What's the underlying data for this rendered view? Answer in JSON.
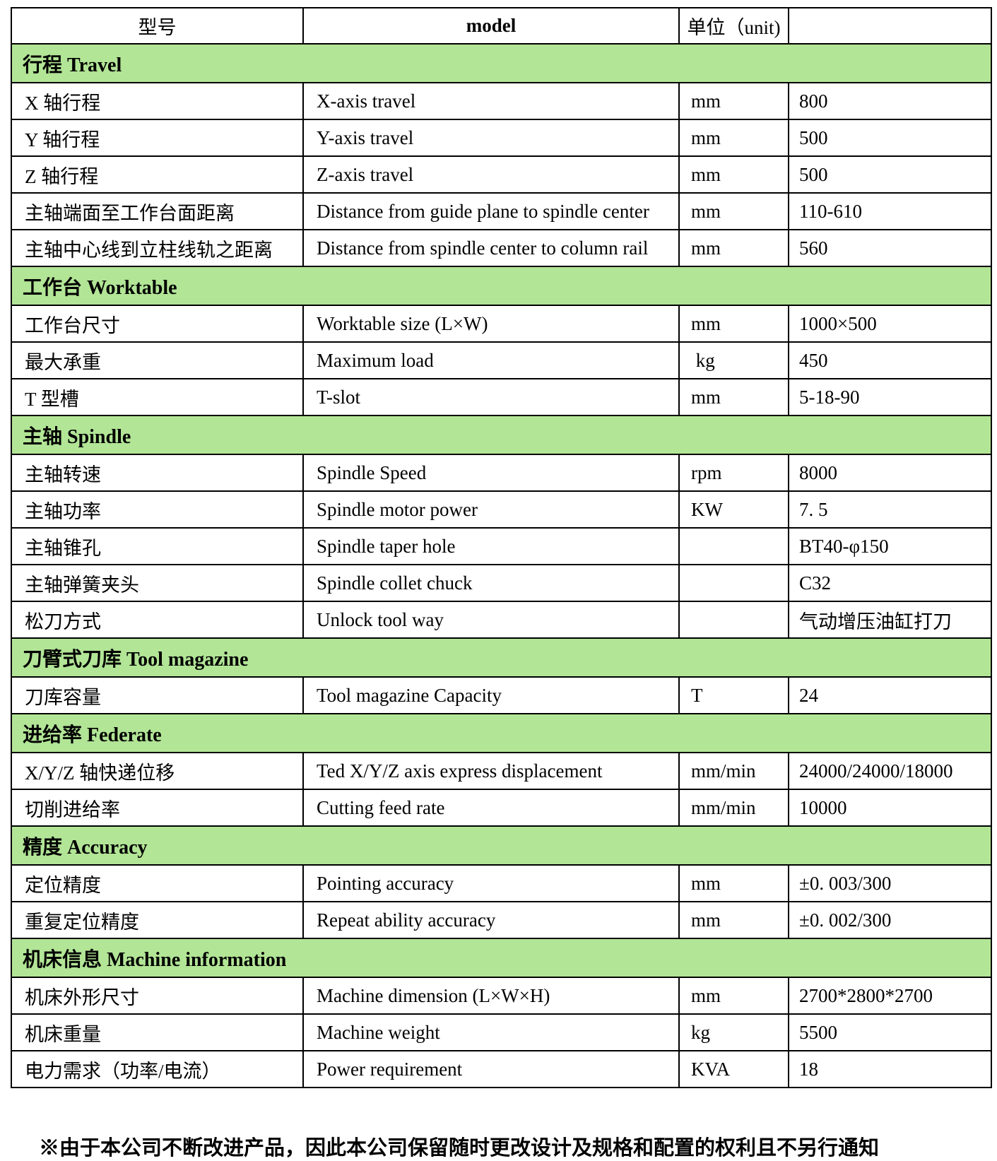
{
  "colors": {
    "section_bg": "#B2E596",
    "border": "#000000",
    "page_bg": "#FFFFFF"
  },
  "header": {
    "col1": "型号",
    "col2": "model",
    "col3": "单位（unit)",
    "col4": ""
  },
  "sections": [
    {
      "title": "行程 Travel",
      "rows": [
        {
          "cn": "X 轴行程",
          "en": "X-axis travel",
          "unit": "mm",
          "value": "800"
        },
        {
          "cn": "Y 轴行程",
          "en": "Y-axis travel",
          "unit": "mm",
          "value": "500"
        },
        {
          "cn": "Z 轴行程",
          "en": "Z-axis travel",
          "unit": "mm",
          "value": "500"
        },
        {
          "cn": "主轴端面至工作台面距离",
          "en": "Distance from guide plane to spindle center",
          "unit": "mm",
          "value": "110-610"
        },
        {
          "cn": "主轴中心线到立柱线轨之距离",
          "en": "Distance from spindle center to column rail",
          "unit": "mm",
          "value": "560"
        }
      ]
    },
    {
      "title": "工作台 Worktable",
      "rows": [
        {
          "cn": "工作台尺寸",
          "en": "Worktable size (L×W)",
          "unit": "mm",
          "value": "1000×500"
        },
        {
          "cn": "最大承重",
          "en": "Maximum load",
          "unit": " kg",
          "value": "450"
        },
        {
          "cn": "T 型槽",
          "en": "T-slot",
          "unit": "mm",
          "value": "5-18-90"
        }
      ]
    },
    {
      "title": "主轴 Spindle",
      "rows": [
        {
          "cn": "主轴转速",
          "en": "Spindle Speed",
          "unit": "rpm",
          "value": "8000"
        },
        {
          "cn": "主轴功率",
          "en": "Spindle motor power",
          "unit": "KW",
          "value": "7. 5"
        },
        {
          "cn": "主轴锥孔",
          "en": "Spindle taper hole",
          "unit": "",
          "value": "BT40-φ150"
        },
        {
          "cn": "主轴弹簧夹头",
          "en": "Spindle collet chuck",
          "unit": "",
          "value": "C32"
        },
        {
          "cn": "松刀方式",
          "en": "Unlock tool way",
          "unit": "",
          "value": "气动增压油缸打刀"
        }
      ]
    },
    {
      "title": "刀臂式刀库 Tool magazine",
      "rows": [
        {
          "cn": "刀库容量",
          "en": "Tool magazine Capacity",
          "unit": "T",
          "value": "24"
        }
      ]
    },
    {
      "title": "进给率 Federate",
      "rows": [
        {
          "cn": "X/Y/Z 轴快递位移",
          "en": "Ted X/Y/Z axis express displacement",
          "unit": "mm/min",
          "value": "24000/24000/18000"
        },
        {
          "cn": "切削进给率",
          "en": "Cutting feed rate",
          "unit": "mm/min",
          "value": "10000"
        }
      ]
    },
    {
      "title": "精度 Accuracy",
      "rows": [
        {
          "cn": "定位精度",
          "en": "Pointing accuracy",
          "unit": "mm",
          "value": "±0. 003/300"
        },
        {
          "cn": "重复定位精度",
          "en": "Repeat ability accuracy",
          "unit": "mm",
          "value": "±0. 002/300"
        }
      ]
    },
    {
      "title": "机床信息 Machine information",
      "rows": [
        {
          "cn": "机床外形尺寸",
          "en": "Machine dimension (L×W×H)",
          "unit": "mm",
          "value": "2700*2800*2700"
        },
        {
          "cn": "机床重量",
          "en": "Machine weight",
          "unit": "kg",
          "value": "5500"
        },
        {
          "cn": "电力需求（功率/电流）",
          "en": "Power requirement",
          "unit": "KVA",
          "value": "18"
        }
      ]
    }
  ],
  "footer_note": "※由于本公司不断改进产品，因此本公司保留随时更改设计及规格和配置的权利且不另行通知"
}
